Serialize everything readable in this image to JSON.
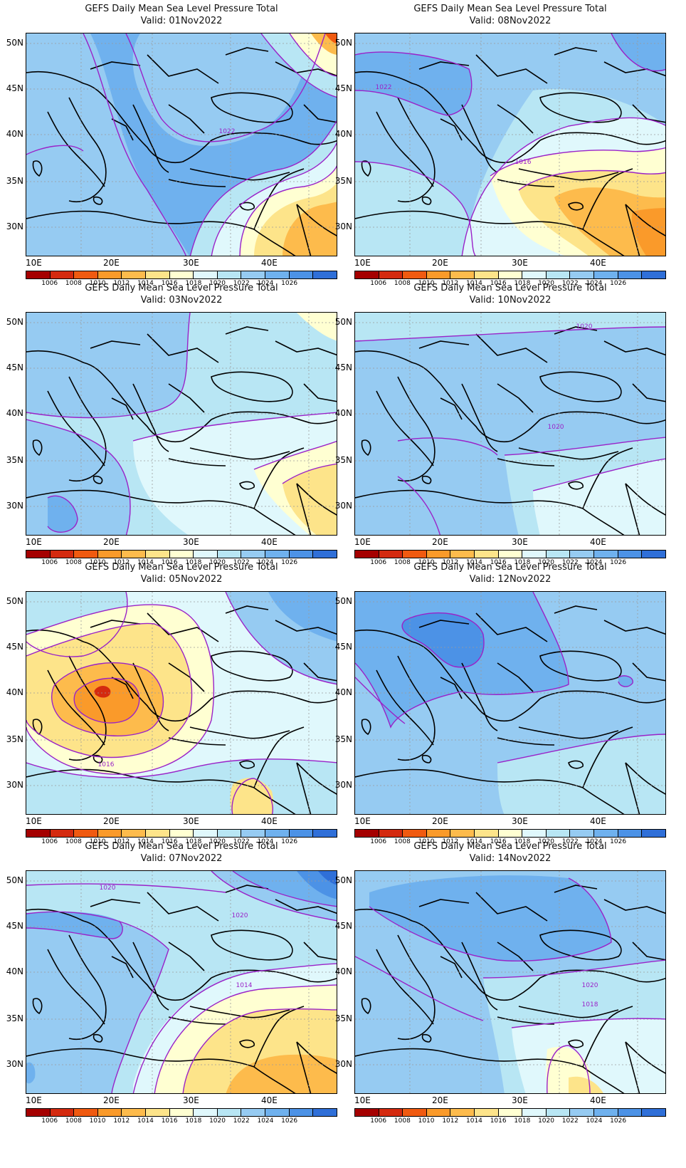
{
  "panel_title": "GEFS Daily Mean Sea Level Pressure Total",
  "panels": [
    {
      "valid": "Valid: 01Nov2022",
      "contour_labels": [
        "1022"
      ]
    },
    {
      "valid": "Valid: 08Nov2022",
      "contour_labels": [
        "1022",
        "1016"
      ]
    },
    {
      "valid": "Valid: 03Nov2022",
      "contour_labels": []
    },
    {
      "valid": "Valid: 10Nov2022",
      "contour_labels": [
        "1020",
        "1020"
      ]
    },
    {
      "valid": "Valid: 05Nov2022",
      "contour_labels": [
        "1016"
      ]
    },
    {
      "valid": "Valid: 12Nov2022",
      "contour_labels": []
    },
    {
      "valid": "Valid: 07Nov2022",
      "contour_labels": [
        "1020",
        "1020",
        "1014"
      ]
    },
    {
      "valid": "Valid: 14Nov2022",
      "contour_labels": [
        "1020",
        "1018"
      ]
    }
  ],
  "axes": {
    "lat_labels": [
      "50N",
      "45N",
      "40N",
      "35N",
      "30N"
    ],
    "lon_labels": [
      "10E",
      "20E",
      "30E",
      "40E"
    ]
  },
  "colorbar": {
    "levels": [
      "1006",
      "1008",
      "1010",
      "1012",
      "1014",
      "1016",
      "1018",
      "1020",
      "1022",
      "1024",
      "1026"
    ],
    "colors": [
      "#a50000",
      "#d42a0f",
      "#f05a10",
      "#fa9a2a",
      "#fdbb4c",
      "#fde48a",
      "#ffffd2",
      "#e0f8fc",
      "#b8e6f4",
      "#96cbf2",
      "#6fb1ee",
      "#4c92e6",
      "#2f6fd8"
    ]
  },
  "colors": {
    "contour": "#9a22c8",
    "coastline": "#000000",
    "grid": "#9a9a9a"
  }
}
